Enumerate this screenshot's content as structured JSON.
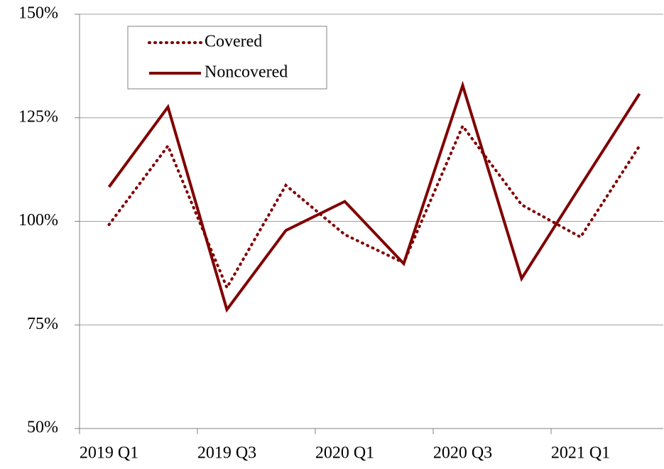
{
  "chart_data": {
    "type": "line",
    "categories": [
      "2019 Q1",
      null,
      "2019 Q3",
      null,
      "2020 Q1",
      null,
      "2020 Q3",
      null,
      "2021 Q1",
      null
    ],
    "series": [
      {
        "name": "Covered",
        "color": "#800000",
        "line_style": "dotted",
        "values": [
          99.2,
          118.2,
          84.0,
          108.7,
          96.8,
          90.0,
          123.0,
          104.0,
          96.2,
          118.2
        ]
      },
      {
        "name": "Noncovered",
        "color": "#800000",
        "line_style": "solid",
        "values": [
          108.3,
          127.6,
          78.7,
          97.8,
          104.8,
          89.8,
          132.8,
          86.2,
          108.6,
          130.8
        ]
      }
    ],
    "ylim": [
      50,
      150
    ],
    "yticks": [
      {
        "value": 50,
        "label": "50%"
      },
      {
        "value": 75,
        "label": "75%"
      },
      {
        "value": 100,
        "label": "100%"
      },
      {
        "value": 125,
        "label": "125%"
      },
      {
        "value": 150,
        "label": "150%"
      }
    ],
    "grid": true,
    "legend": "upper left"
  }
}
